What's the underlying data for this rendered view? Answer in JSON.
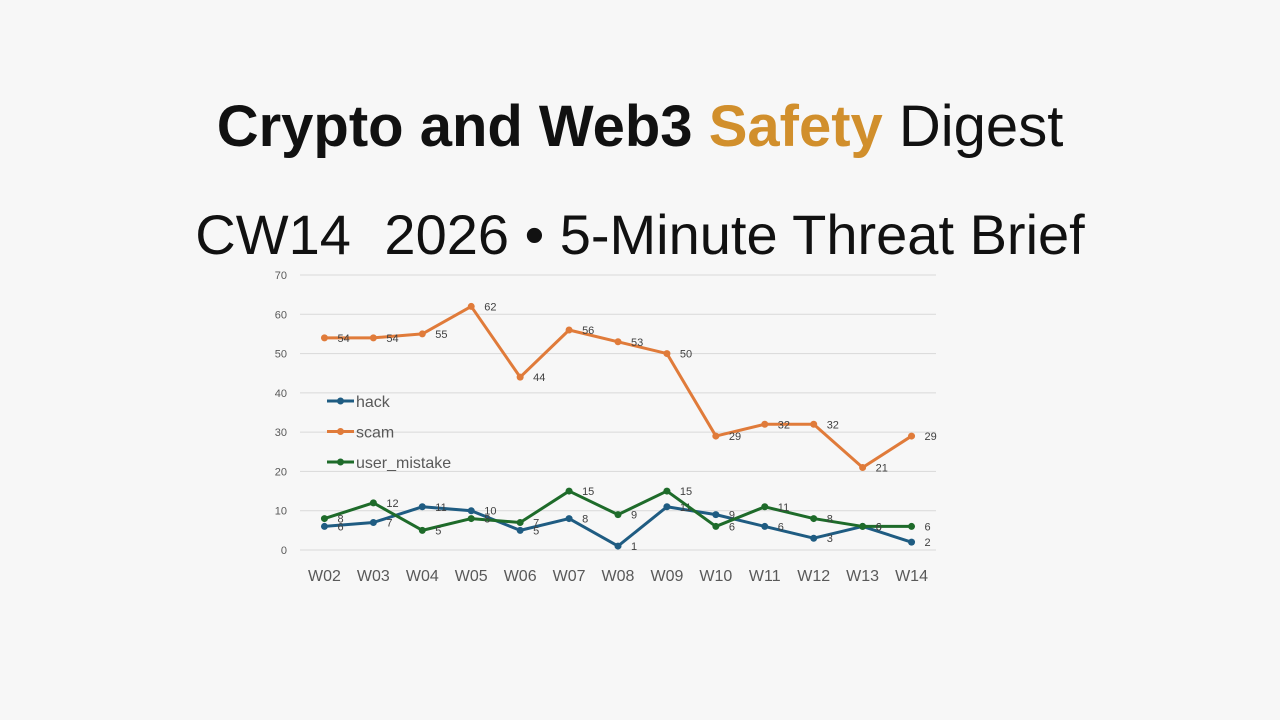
{
  "header": {
    "title_part1": "Crypto and Web3",
    "title_accent": "Safety",
    "title_part2": "Digest",
    "accent_color": "#d18f2c",
    "subtitle_week": "CW14",
    "subtitle_year": "2026",
    "subtitle_bullet": "•",
    "subtitle_rest": "5-Minute Threat Brief"
  },
  "chart_data": {
    "type": "line",
    "categories": [
      "W02",
      "W03",
      "W04",
      "W05",
      "W06",
      "W07",
      "W08",
      "W09",
      "W10",
      "W11",
      "W12",
      "W13",
      "W14"
    ],
    "ylim": [
      0,
      70
    ],
    "yticks": [
      0,
      10,
      20,
      30,
      40,
      50,
      60,
      70
    ],
    "grid": true,
    "legend_position": "left",
    "data_labels": true,
    "series": [
      {
        "name": "hack",
        "color": "#1f5c82",
        "values": [
          6,
          7,
          11,
          10,
          5,
          8,
          1,
          11,
          9,
          6,
          3,
          6,
          2
        ]
      },
      {
        "name": "scam",
        "color": "#e07b3a",
        "values": [
          54,
          54,
          55,
          62,
          44,
          56,
          53,
          50,
          29,
          32,
          32,
          21,
          29
        ]
      },
      {
        "name": "user_mistake",
        "color": "#1e6b2a",
        "values": [
          8,
          12,
          5,
          8,
          7,
          15,
          9,
          15,
          6,
          11,
          8,
          6,
          6
        ]
      }
    ]
  }
}
